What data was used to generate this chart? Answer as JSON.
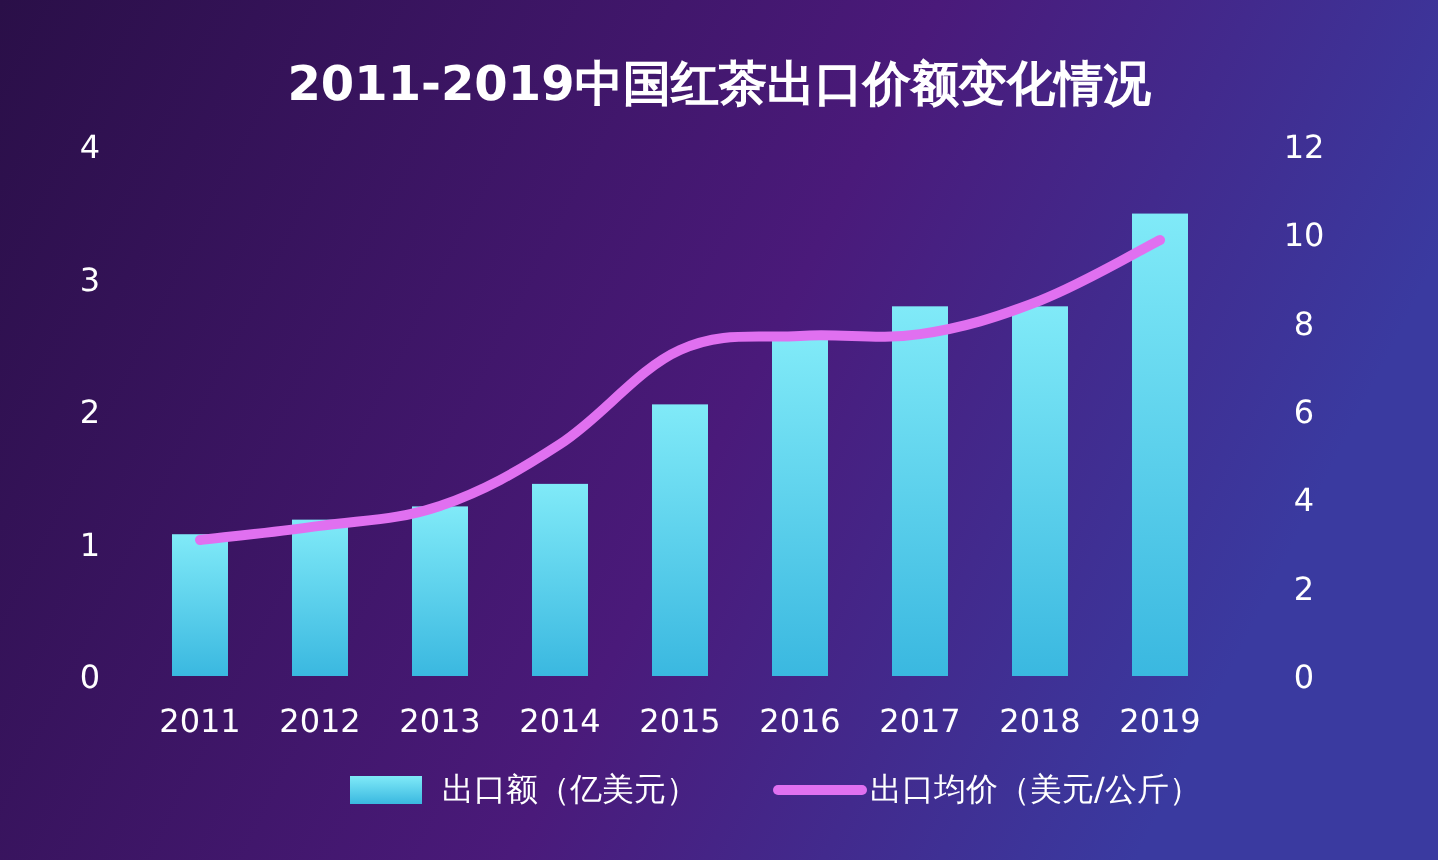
{
  "chart_data": {
    "type": "bar",
    "title": "2011-2019中国红茶出口价额变化情况",
    "categories": [
      "2011",
      "2012",
      "2013",
      "2014",
      "2015",
      "2016",
      "2017",
      "2018",
      "2019"
    ],
    "series": [
      {
        "name": "出口额（亿美元）",
        "color": "#3ab8e0",
        "values": [
          1.07,
          1.18,
          1.28,
          1.45,
          2.05,
          2.54,
          2.79,
          2.79,
          3.49
        ]
      },
      {
        "name": "出口均价（美元/公斤）",
        "type": "line",
        "axis": "y2",
        "color": "#e070f0",
        "values": [
          3.08,
          3.4,
          3.85,
          5.25,
          7.38,
          7.7,
          7.74,
          8.5,
          9.87
        ]
      }
    ],
    "ylim": [
      0,
      4
    ],
    "yticks": [
      0,
      1,
      2,
      3,
      4
    ],
    "y2lim": [
      0,
      12
    ],
    "y2ticks": [
      0,
      2,
      4,
      6,
      8,
      10,
      12
    ],
    "grid": false,
    "legend": "bottom",
    "marker": "none"
  }
}
